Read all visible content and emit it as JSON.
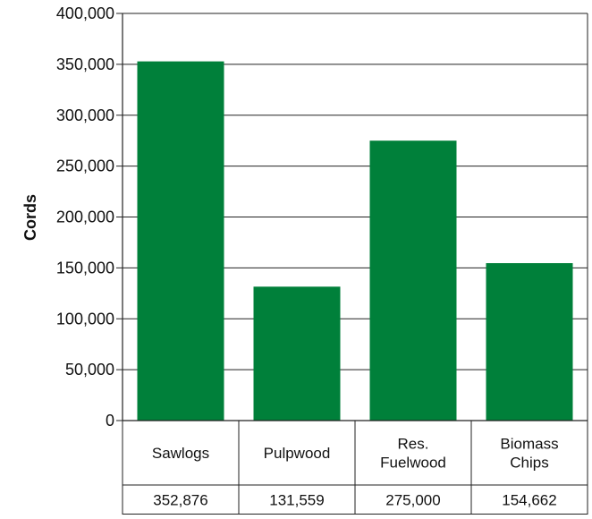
{
  "chart_data": {
    "type": "bar",
    "title": "",
    "xlabel": "",
    "ylabel": "Cords",
    "ylim": [
      0,
      400000
    ],
    "yticks": [
      0,
      50000,
      100000,
      150000,
      200000,
      250000,
      300000,
      350000,
      400000
    ],
    "ytick_labels": [
      "0",
      "50,000",
      "100,000",
      "150,000",
      "200,000",
      "250,000",
      "300,000",
      "350,000",
      "400,000"
    ],
    "grid": true,
    "categories": [
      [
        "Sawlogs"
      ],
      [
        "Pulpwood"
      ],
      [
        "Res.",
        "Fuelwood"
      ],
      [
        "Biomass",
        "Chips"
      ]
    ],
    "values": [
      352876,
      131559,
      275000,
      154662
    ],
    "value_labels": [
      "352,876",
      "131,559",
      "275,000",
      "154,662"
    ],
    "bar_color": "#00803a",
    "data_table": true
  }
}
